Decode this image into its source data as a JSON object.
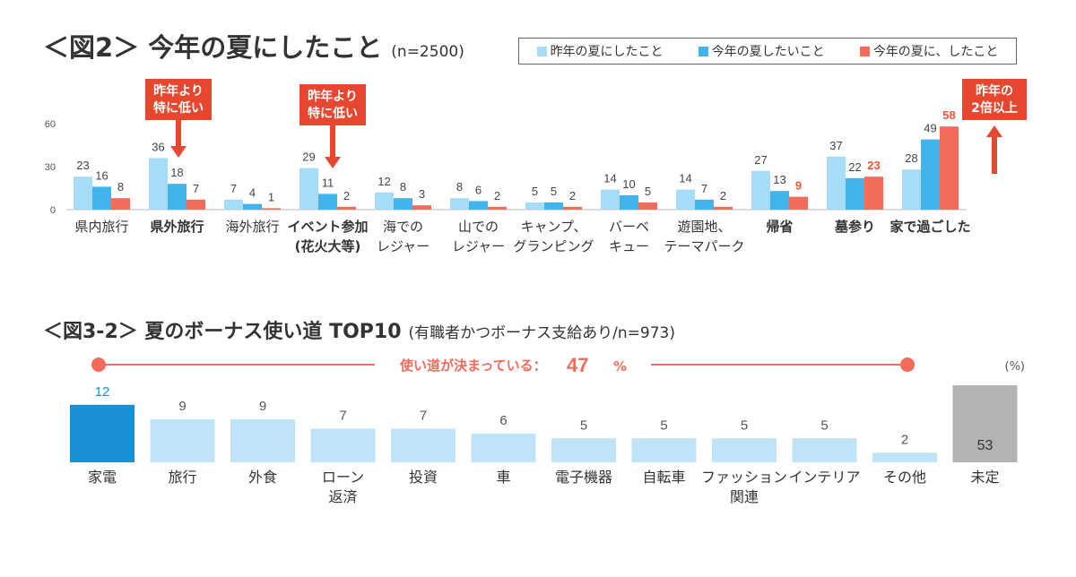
{
  "chart1": {
    "title": "＜図2＞ 今年の夏にしたこと",
    "subtitle": "(n=2500)",
    "legend": [
      "昨年の夏にしたこと",
      "今年の夏したいこと",
      "今年の夏に、したこと"
    ],
    "colors": {
      "last_year": "#a6dcf7",
      "want": "#41b4eb",
      "did": "#f26b5b",
      "text_highlight": "#f0573a",
      "callout": "#e8472f"
    },
    "callouts": [
      "昨年より\n特に低い",
      "昨年より\n特に低い",
      "昨年の\n2倍以上"
    ]
  },
  "chart2": {
    "title": "＜図3-2＞ 夏のボーナス使い道 TOP10",
    "subtitle": "(有職者かつボーナス支給あり/n=973)",
    "banner": "使い道が決まっている：",
    "banner_value": "47",
    "banner_unit": "%",
    "unit_label": "(%)",
    "colors": {
      "first": "#1a8fd8",
      "other": "#bfe4f8",
      "undecided": "#b3b3b3",
      "banner": "#f26b5b"
    }
  },
  "chart_data": [
    {
      "type": "bar",
      "title": "＜図2＞ 今年の夏にしたこと",
      "subtitle": "(n=2500)",
      "categories": [
        "県内旅行",
        "県外旅行",
        "海外旅行",
        "イベント参加\n(花火大等)",
        "海での\nレジャー",
        "山での\nレジャー",
        "キャンプ、\nグランピング",
        "バーベ\nキュー",
        "遊園地、\nテーマパーク",
        "帰省",
        "墓参り",
        "家で過ごした"
      ],
      "bold_categories": [
        1,
        3,
        9,
        10,
        11
      ],
      "highlight_did": [
        9,
        10,
        11
      ],
      "yticks": [
        0,
        30,
        60
      ],
      "ylim": [
        0,
        60
      ],
      "series": [
        {
          "name": "昨年の夏にしたこと",
          "values": [
            23,
            36,
            7,
            29,
            12,
            8,
            5,
            14,
            14,
            27,
            37,
            28
          ]
        },
        {
          "name": "今年の夏したいこと",
          "values": [
            16,
            18,
            4,
            11,
            8,
            6,
            5,
            10,
            7,
            13,
            22,
            49
          ]
        },
        {
          "name": "今年の夏に、したこと",
          "values": [
            8,
            7,
            1,
            2,
            3,
            2,
            2,
            5,
            2,
            9,
            23,
            58
          ]
        }
      ]
    },
    {
      "type": "bar",
      "title": "＜図3-2＞ 夏のボーナス使い道 TOP10",
      "subtitle": "(有職者かつボーナス支給あり/n=973)",
      "categories": [
        "家電",
        "旅行",
        "外食",
        "ローン\n返済",
        "投資",
        "車",
        "電子機器",
        "自転車",
        "ファッション\n関連",
        "インテリア",
        "その他",
        "未定"
      ],
      "values": [
        12,
        9,
        9,
        7,
        7,
        6,
        5,
        5,
        5,
        5,
        2,
        53
      ]
    }
  ]
}
